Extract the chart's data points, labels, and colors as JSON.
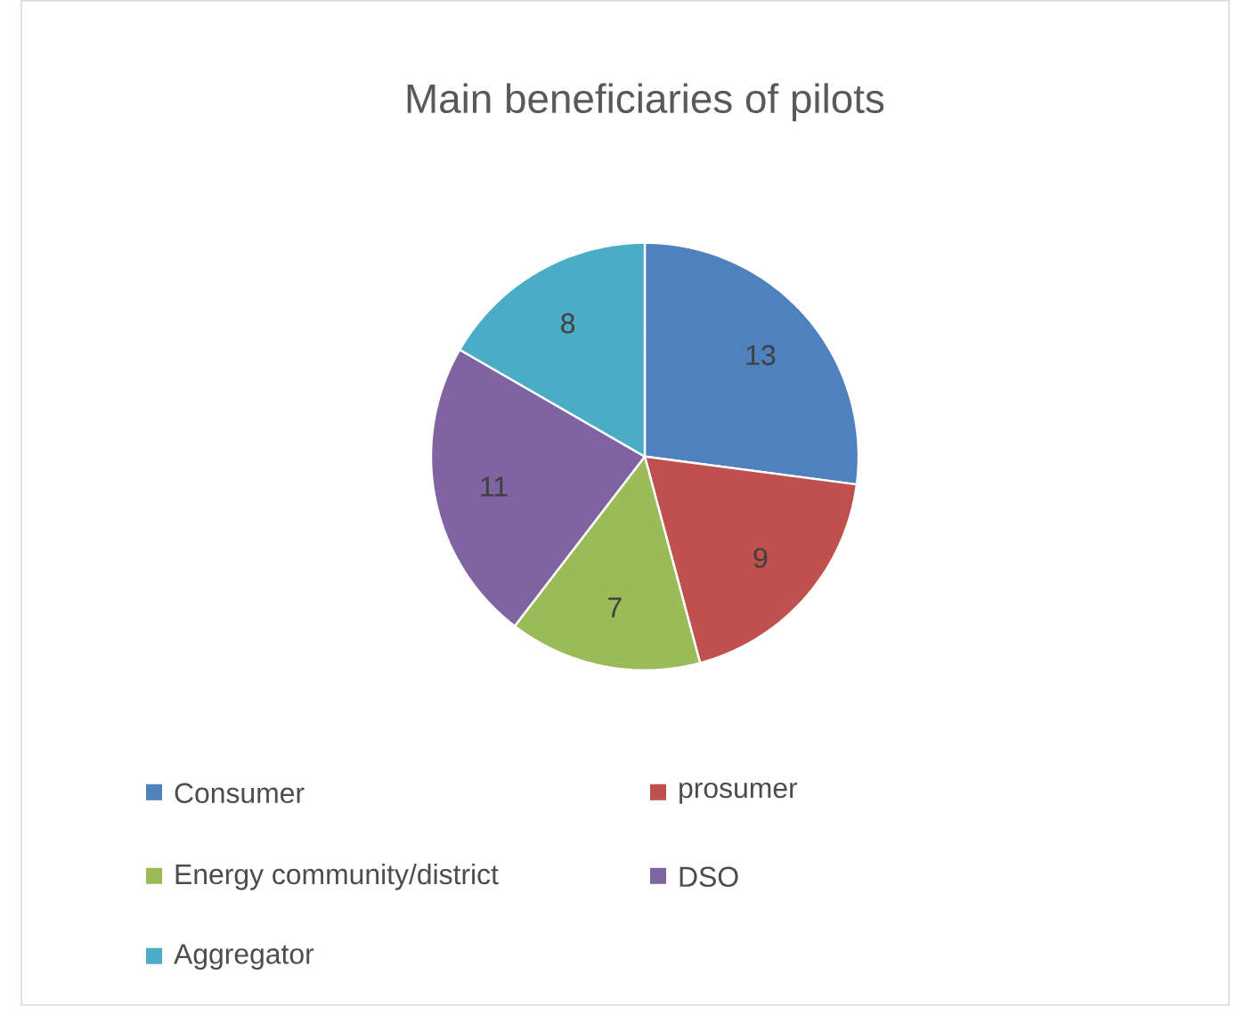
{
  "chart_data": {
    "type": "pie",
    "title": "Main beneficiaries of pilots",
    "categories": [
      "Consumer",
      "prosumer",
      "Energy community/district",
      "DSO",
      "Aggregator"
    ],
    "values": [
      13,
      9,
      7,
      11,
      8
    ],
    "colors": [
      "#4f81bd",
      "#c0504d",
      "#9bbb59",
      "#8064a2",
      "#4bacc6"
    ],
    "data_labels": true,
    "legend": "bottom"
  }
}
